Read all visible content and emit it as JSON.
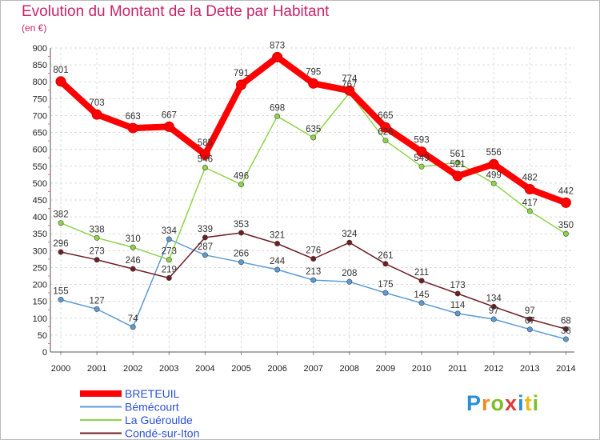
{
  "title": "Evolution du Montant de la Dette par Habitant",
  "subtitle": "(en €)",
  "logo_text": "Proxiti",
  "chart_data": {
    "type": "line",
    "title": "Evolution du Montant de la Dette par Habitant",
    "ylabel": "(en €)",
    "x": [
      "2000",
      "2001",
      "2002",
      "2003",
      "2004",
      "2005",
      "2006",
      "2007",
      "2008",
      "2009",
      "2010",
      "2011",
      "2012",
      "2013",
      "2014"
    ],
    "ylim": [
      0,
      900
    ],
    "yticks": [
      0,
      50,
      100,
      150,
      200,
      250,
      300,
      350,
      400,
      450,
      500,
      550,
      600,
      650,
      700,
      750,
      800,
      850,
      900
    ],
    "grid": true,
    "legend_position": "bottom-left",
    "series": [
      {
        "name": "BRETEUIL",
        "color": "#ff0000",
        "values": [
          801,
          703,
          663,
          667,
          585,
          791,
          873,
          795,
          774,
          665,
          593,
          521,
          556,
          482,
          442
        ]
      },
      {
        "name": "Bémécourt",
        "color": "#5b9bd5",
        "values": [
          155,
          127,
          74,
          334,
          287,
          266,
          244,
          213,
          208,
          175,
          145,
          114,
          97,
          67,
          38
        ]
      },
      {
        "name": "La Guéroulde",
        "color": "#8ed448",
        "values": [
          382,
          338,
          310,
          273,
          546,
          496,
          698,
          635,
          767,
          626,
          549,
          561,
          499,
          417,
          350
        ]
      },
      {
        "name": "Condé-sur-Iton",
        "color": "#6e1f24",
        "values": [
          296,
          273,
          246,
          219,
          339,
          353,
          321,
          276,
          324,
          261,
          211,
          173,
          134,
          97,
          68
        ]
      }
    ]
  }
}
